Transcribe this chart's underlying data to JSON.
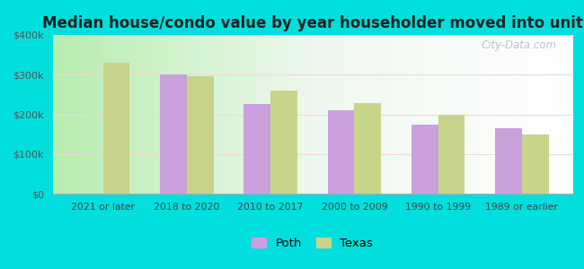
{
  "title": "Median house/condo value by year householder moved into unit",
  "categories": [
    "2021 or later",
    "2018 to 2020",
    "2010 to 2017",
    "2000 to 2009",
    "1990 to 1999",
    "1989 or earlier"
  ],
  "poth_values": [
    0,
    300000,
    225000,
    210000,
    175000,
    165000
  ],
  "texas_values": [
    330000,
    295000,
    260000,
    228000,
    198000,
    150000
  ],
  "poth_color": "#c9a0dc",
  "texas_color": "#c8d48a",
  "bg_left_color": "#c8eec0",
  "bg_right_color": "#f0faf0",
  "outer_background": "#00dede",
  "ylim": [
    0,
    400000
  ],
  "yticks": [
    0,
    100000,
    200000,
    300000,
    400000
  ],
  "ytick_labels": [
    "$0",
    "$100k",
    "$200k",
    "$300k",
    "$400k"
  ],
  "watermark": "City-Data.com",
  "legend_labels": [
    "Poth",
    "Texas"
  ],
  "bar_width": 0.32,
  "grid_color": "#f0d8d8",
  "title_fontsize": 12
}
